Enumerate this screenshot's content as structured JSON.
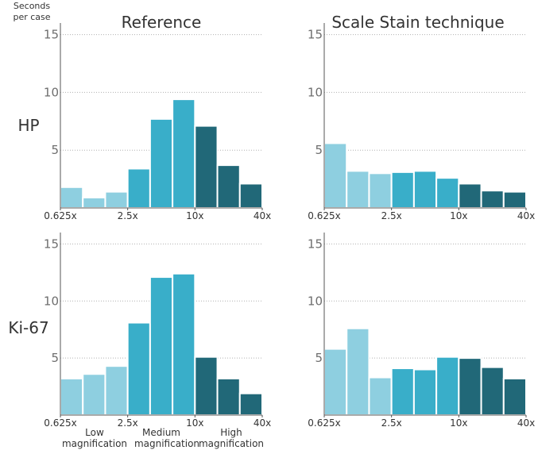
{
  "y_unit_label": [
    "Seconds",
    "per case"
  ],
  "column_titles": [
    "Reference",
    "Scale Stain technique"
  ],
  "row_labels": [
    "HP",
    "Ki-67"
  ],
  "zone_labels": [
    [
      "Low",
      "magnification"
    ],
    [
      "Medium",
      "magnification"
    ],
    [
      "High",
      "magnification"
    ]
  ],
  "colors": {
    "low": "#8ecfe0",
    "medium": "#39aec9",
    "high": "#216878",
    "grid": "#b0b0b0",
    "axis": "#555555"
  },
  "chart_data": [
    {
      "type": "bar",
      "title": "Reference",
      "row": "HP",
      "ylabel": "Seconds per case",
      "ylim": [
        0,
        16
      ],
      "yticks": [
        "5",
        "10",
        "15"
      ],
      "xticks": [
        "0.625x",
        "2.5x",
        "10x",
        "40x"
      ],
      "bin_zones": [
        "low",
        "low",
        "low",
        "medium",
        "medium",
        "medium",
        "high",
        "high",
        "high"
      ],
      "values": [
        1.8,
        0.9,
        1.4,
        3.4,
        7.7,
        9.4,
        7.1,
        3.7,
        2.1
      ]
    },
    {
      "type": "bar",
      "title": "Scale Stain technique",
      "row": "HP",
      "ylabel": "Seconds per case",
      "ylim": [
        0,
        16
      ],
      "yticks": [
        "5",
        "10",
        "15"
      ],
      "xticks": [
        "0.625x",
        "2.5x",
        "10x",
        "40x"
      ],
      "bin_zones": [
        "low",
        "low",
        "low",
        "medium",
        "medium",
        "medium",
        "high",
        "high",
        "high"
      ],
      "values": [
        5.6,
        3.2,
        3.0,
        3.1,
        3.2,
        2.6,
        2.1,
        1.5,
        1.4
      ]
    },
    {
      "type": "bar",
      "title": "Reference",
      "row": "Ki-67",
      "ylabel": "Seconds per case",
      "ylim": [
        0,
        16
      ],
      "yticks": [
        "5",
        "10",
        "15"
      ],
      "xticks": [
        "0.625x",
        "2.5x",
        "10x",
        "40x"
      ],
      "bin_zones": [
        "low",
        "low",
        "low",
        "medium",
        "medium",
        "medium",
        "high",
        "high",
        "high"
      ],
      "values": [
        3.2,
        3.6,
        4.3,
        8.1,
        12.1,
        12.4,
        5.1,
        3.2,
        1.9
      ]
    },
    {
      "type": "bar",
      "title": "Scale Stain technique",
      "row": "Ki-67",
      "ylabel": "Seconds per case",
      "ylim": [
        0,
        16
      ],
      "yticks": [
        "5",
        "10",
        "15"
      ],
      "xticks": [
        "0.625x",
        "2.5x",
        "10x",
        "40x"
      ],
      "bin_zones": [
        "low",
        "low",
        "low",
        "medium",
        "medium",
        "medium",
        "high",
        "high",
        "high"
      ],
      "values": [
        5.8,
        7.6,
        3.3,
        4.1,
        4.0,
        5.1,
        5.0,
        4.2,
        3.2
      ]
    }
  ]
}
